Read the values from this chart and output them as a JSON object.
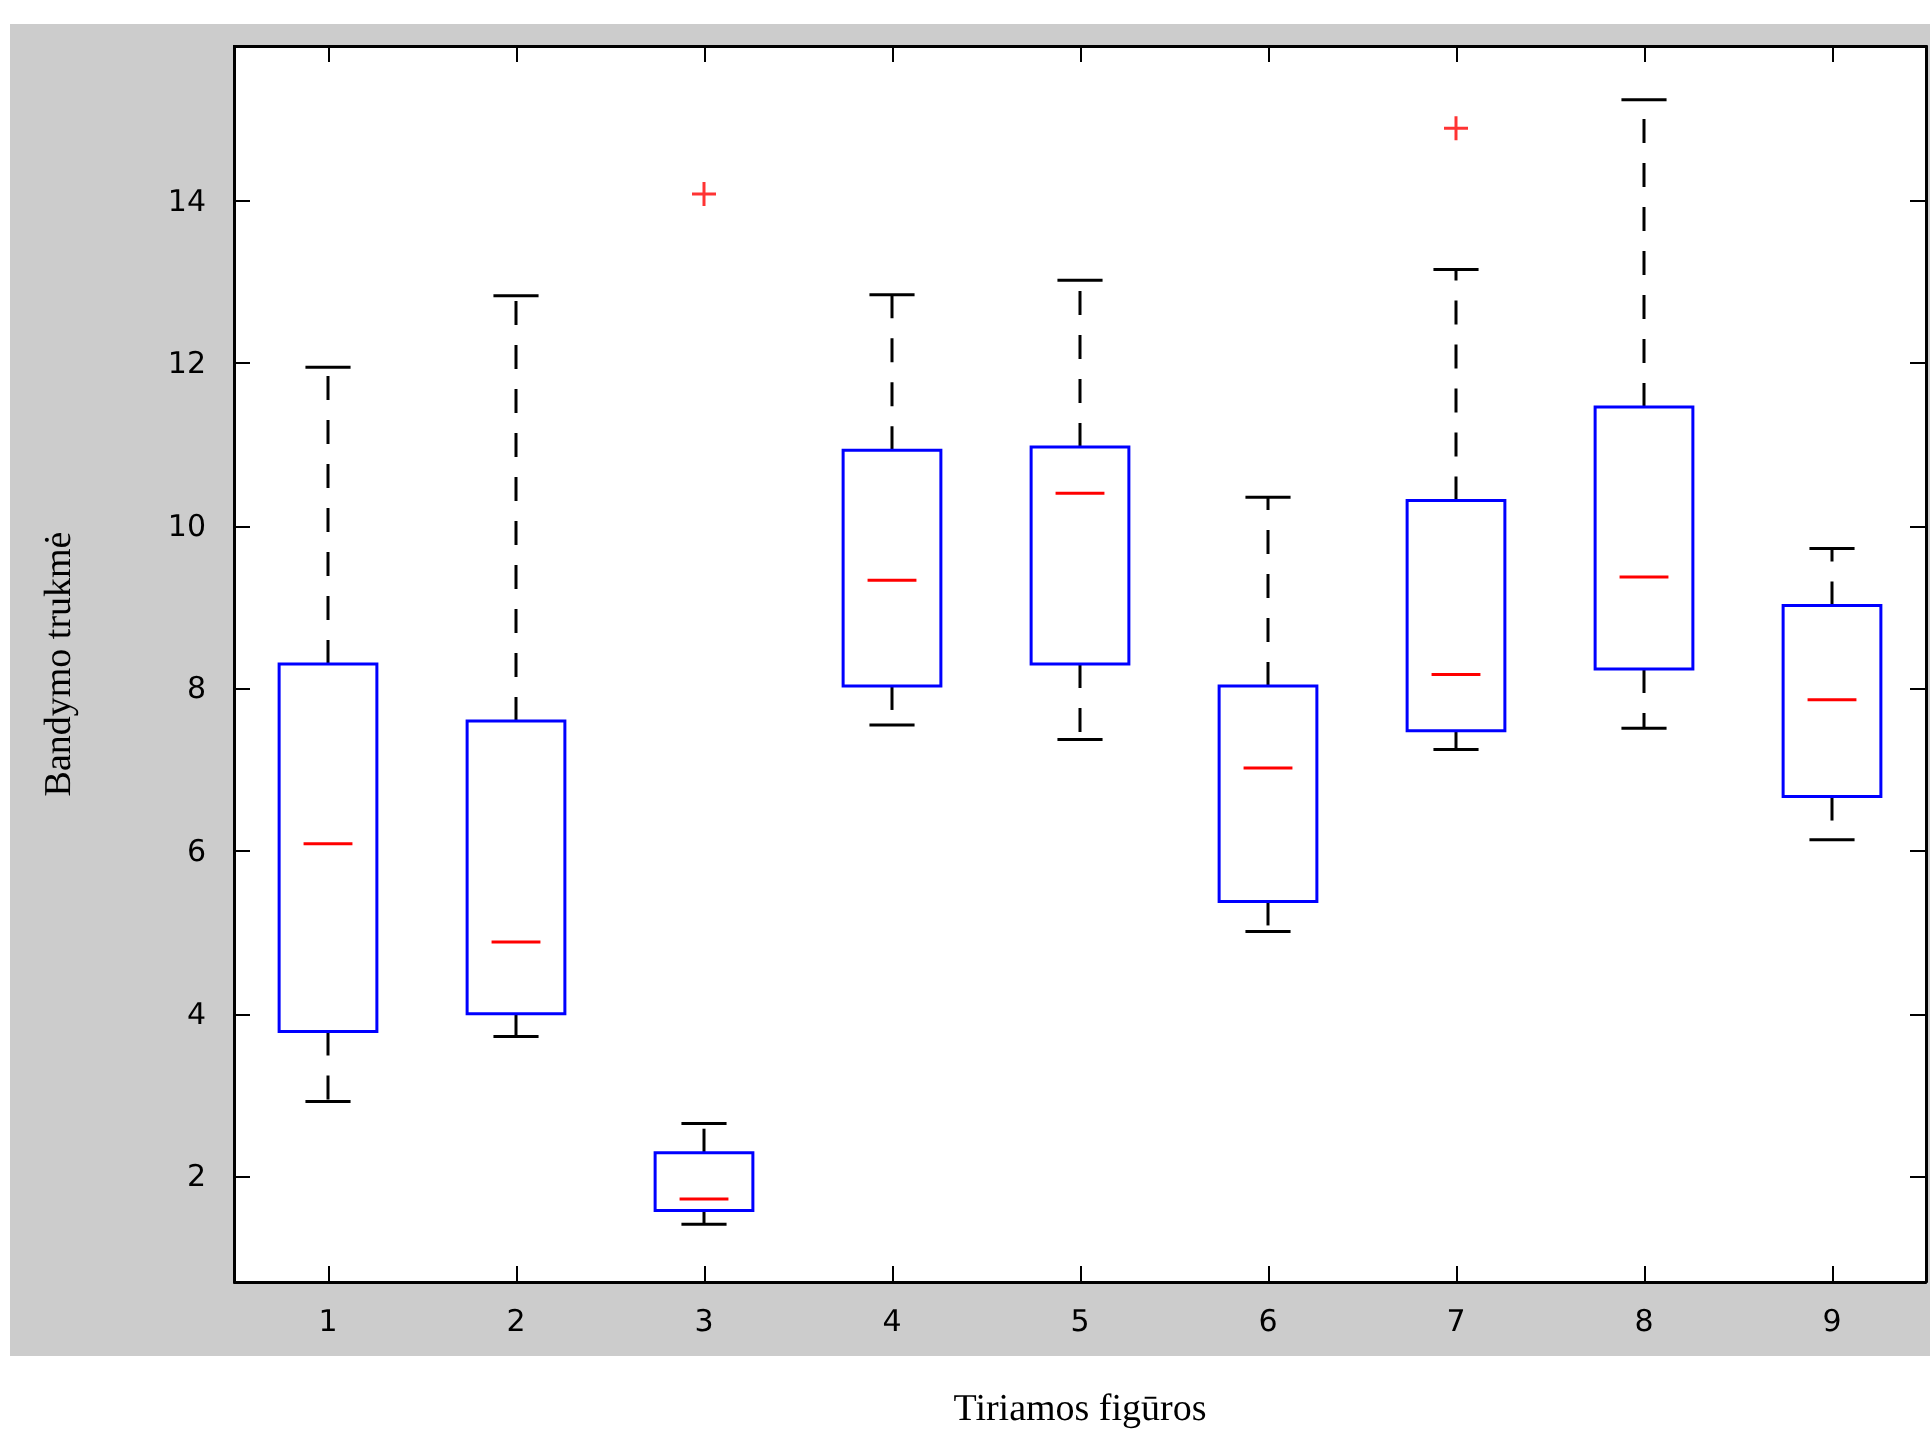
{
  "chart_data": {
    "type": "box",
    "xlabel": "Tiriamos figūros",
    "ylabel": "Bandymo trukmė",
    "categories": [
      "1",
      "2",
      "3",
      "4",
      "5",
      "6",
      "7",
      "8",
      "9"
    ],
    "color": "#0000ff",
    "boxes": [
      {
        "low": 2.92,
        "q1": 3.78,
        "median": 6.09,
        "q3": 8.3,
        "high": 11.95
      },
      {
        "low": 3.72,
        "q1": 4.0,
        "median": 4.88,
        "q3": 7.6,
        "high": 12.83
      },
      {
        "low": 1.41,
        "q1": 1.58,
        "median": 1.72,
        "q3": 2.29,
        "high": 2.65,
        "outliers": [
          14.08
        ]
      },
      {
        "low": 7.55,
        "q1": 8.03,
        "median": 9.33,
        "q3": 10.93,
        "high": 12.84
      },
      {
        "low": 7.37,
        "q1": 8.3,
        "median": 10.4,
        "q3": 10.97,
        "high": 13.02
      },
      {
        "low": 5.01,
        "q1": 5.38,
        "median": 7.02,
        "q3": 8.03,
        "high": 10.35
      },
      {
        "low": 7.25,
        "q1": 7.48,
        "median": 8.17,
        "q3": 10.31,
        "high": 13.15,
        "outliers": [
          14.89
        ]
      },
      {
        "low": 7.51,
        "q1": 8.24,
        "median": 9.37,
        "q3": 11.46,
        "high": 15.24
      },
      {
        "low": 6.14,
        "q1": 6.67,
        "median": 7.86,
        "q3": 9.02,
        "high": 9.72
      }
    ],
    "marker": "cross",
    "ylim": [
      0.7,
      15.9
    ],
    "yticks": [
      2,
      4,
      6,
      8,
      10,
      12,
      14
    ],
    "grid": false
  }
}
